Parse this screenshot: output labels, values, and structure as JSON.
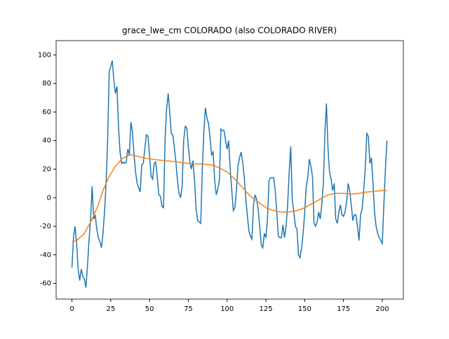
{
  "chart_data": {
    "type": "line",
    "title": "grace_lwe_cm COLORADO (also COLORADO RIVER)",
    "xlim": [
      -10.2,
      213.6
    ],
    "xticks": [
      0,
      25,
      50,
      75,
      100,
      125,
      150,
      175,
      200
    ],
    "ylim": [
      -71,
      110
    ],
    "yticks": [
      -60,
      -40,
      -20,
      0,
      20,
      40,
      60,
      80,
      100
    ],
    "series": [
      {
        "color": "#1f77b4",
        "x": [
          0,
          1,
          2,
          3,
          4,
          5,
          6,
          7,
          8,
          9,
          10,
          11,
          12,
          13,
          14,
          15,
          16,
          17,
          18,
          19,
          20,
          21,
          22,
          23,
          24,
          25,
          26,
          27,
          28,
          29,
          30,
          31,
          32,
          33,
          34,
          35,
          36,
          37,
          38,
          39,
          40,
          41,
          42,
          43,
          44,
          45,
          46,
          47,
          48,
          49,
          50,
          51,
          52,
          53,
          54,
          55,
          56,
          57,
          58,
          59,
          60,
          61,
          62,
          63,
          64,
          65,
          66,
          67,
          68,
          69,
          70,
          71,
          72,
          73,
          74,
          75,
          76,
          77,
          78,
          79,
          80,
          81,
          82,
          83,
          84,
          85,
          86,
          87,
          88,
          89,
          90,
          91,
          92,
          93,
          94,
          95,
          96,
          97,
          98,
          99,
          100,
          101,
          102,
          103,
          104,
          105,
          106,
          107,
          108,
          109,
          110,
          111,
          112,
          113,
          114,
          115,
          116,
          117,
          118,
          119,
          120,
          121,
          122,
          123,
          124,
          125,
          126,
          127,
          128,
          129,
          130,
          131,
          132,
          133,
          134,
          135,
          136,
          137,
          138,
          139,
          140,
          141,
          142,
          143,
          144,
          145,
          146,
          147,
          148,
          149,
          150,
          151,
          152,
          153,
          154,
          155,
          156,
          157,
          158,
          159,
          160,
          161,
          162,
          163,
          164,
          165,
          166,
          167,
          168,
          169,
          170,
          171,
          172,
          173,
          174,
          175,
          176,
          177,
          178,
          179,
          180,
          181,
          182,
          183,
          184,
          185,
          186,
          187,
          188,
          189,
          190,
          191,
          192,
          193,
          194,
          195,
          196,
          197,
          198,
          199,
          200,
          201,
          202,
          203
        ],
        "values": [
          -49,
          -28,
          -20,
          -32,
          -50,
          -58,
          -50,
          -55,
          -57,
          -63,
          -48,
          -30,
          -15,
          8,
          -15,
          -12,
          -22,
          -28,
          -31,
          -35,
          -25,
          -10,
          10,
          40,
          88,
          92,
          96,
          82,
          73,
          78,
          50,
          32,
          24,
          25,
          24,
          25,
          34,
          30,
          53,
          46,
          30,
          18,
          10,
          7,
          4,
          23,
          24,
          35,
          44,
          43,
          30,
          15,
          13,
          24,
          25,
          14,
          2,
          1,
          -6,
          -7,
          40,
          62,
          73,
          60,
          45,
          44,
          35,
          25,
          12,
          3,
          0,
          8,
          40,
          50,
          49,
          36,
          25,
          20,
          26,
          12,
          -8,
          -16,
          -17,
          -18,
          20,
          46,
          63,
          56,
          52,
          42,
          30,
          32,
          12,
          2,
          6,
          12,
          48,
          47,
          47,
          40,
          34,
          40,
          20,
          5,
          -9,
          -7,
          5,
          22,
          28,
          32,
          25,
          15,
          0,
          -12,
          -23,
          -27,
          -29,
          -5,
          2,
          -1,
          -8,
          -20,
          -33,
          -35,
          -25,
          -28,
          -15,
          12,
          14,
          14,
          14,
          5,
          -10,
          -27,
          -28,
          -28,
          -19,
          -28,
          -20,
          -5,
          18,
          36,
          -2,
          -10,
          -20,
          -22,
          -40,
          -42,
          -35,
          -25,
          -10,
          8,
          14,
          27,
          22,
          15,
          -18,
          -20,
          -17,
          -10,
          -15,
          -5,
          10,
          45,
          66,
          35,
          18,
          13,
          5,
          10,
          -15,
          -18,
          -10,
          -5,
          -12,
          -13,
          -10,
          -3,
          10,
          5,
          -5,
          -16,
          -12,
          -12,
          -20,
          -30,
          -12,
          -8,
          5,
          20,
          45,
          43,
          24,
          28,
          10,
          -10,
          -20,
          -25,
          -28,
          -30,
          -32,
          -5,
          20,
          40
        ]
      },
      {
        "color": "#ff7f0e",
        "x": [
          0,
          3,
          8,
          13,
          17,
          20,
          24,
          28,
          32,
          36,
          38,
          42,
          48,
          55,
          60,
          68,
          75,
          85,
          90,
          95,
          100,
          105,
          110,
          115,
          120,
          125,
          130,
          135,
          140,
          145,
          150,
          155,
          160,
          165,
          170,
          175,
          180,
          185,
          190,
          195,
          200,
          203
        ],
        "values": [
          -31,
          -30,
          -25,
          -15,
          -5,
          5,
          15,
          22,
          27,
          29.5,
          30,
          29,
          27.5,
          26.5,
          26,
          25,
          24,
          23.5,
          23,
          21,
          18,
          13,
          7,
          1,
          -3,
          -7,
          -9,
          -10,
          -10,
          -9,
          -7,
          -4,
          -1,
          2,
          3,
          3,
          2.5,
          3,
          4,
          4.5,
          5,
          5
        ]
      }
    ]
  }
}
